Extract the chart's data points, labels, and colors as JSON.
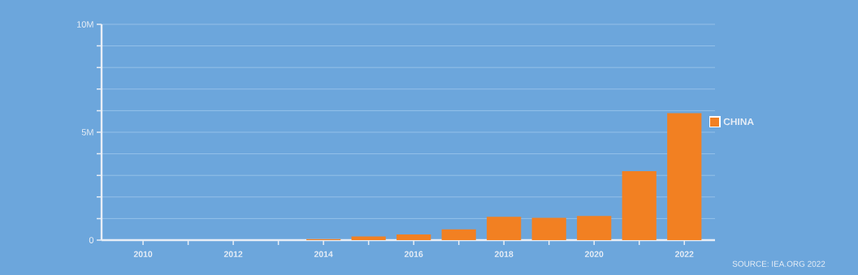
{
  "chart_data": {
    "type": "bar",
    "categories": [
      "2010",
      null,
      "2012",
      null,
      "2014",
      null,
      "2016",
      null,
      "2018",
      null,
      "2020",
      null,
      "2022"
    ],
    "series": [
      {
        "name": "CHINA",
        "color": "#f28022",
        "values": [
          0,
          0,
          0,
          0,
          50000,
          170000,
          260000,
          500000,
          1080000,
          1030000,
          1120000,
          3200000,
          5880000
        ]
      }
    ],
    "ylim": [
      0,
      10000000
    ],
    "yticks": [
      0,
      {
        "value": 1000000,
        "label": null
      },
      {
        "value": 2000000,
        "label": null
      },
      {
        "value": 3000000,
        "label": null
      },
      {
        "value": 4000000,
        "label": null
      },
      {
        "value": 5000000,
        "label": "5M"
      },
      {
        "value": 6000000,
        "label": null
      },
      {
        "value": 7000000,
        "label": null
      },
      {
        "value": 8000000,
        "label": null
      },
      {
        "value": 9000000,
        "label": null
      },
      {
        "value": 10000000,
        "label": "10M"
      }
    ],
    "grid": "y",
    "legend": "right",
    "annotations": [
      "SOURCE: IEA.ORG 2022"
    ]
  }
}
